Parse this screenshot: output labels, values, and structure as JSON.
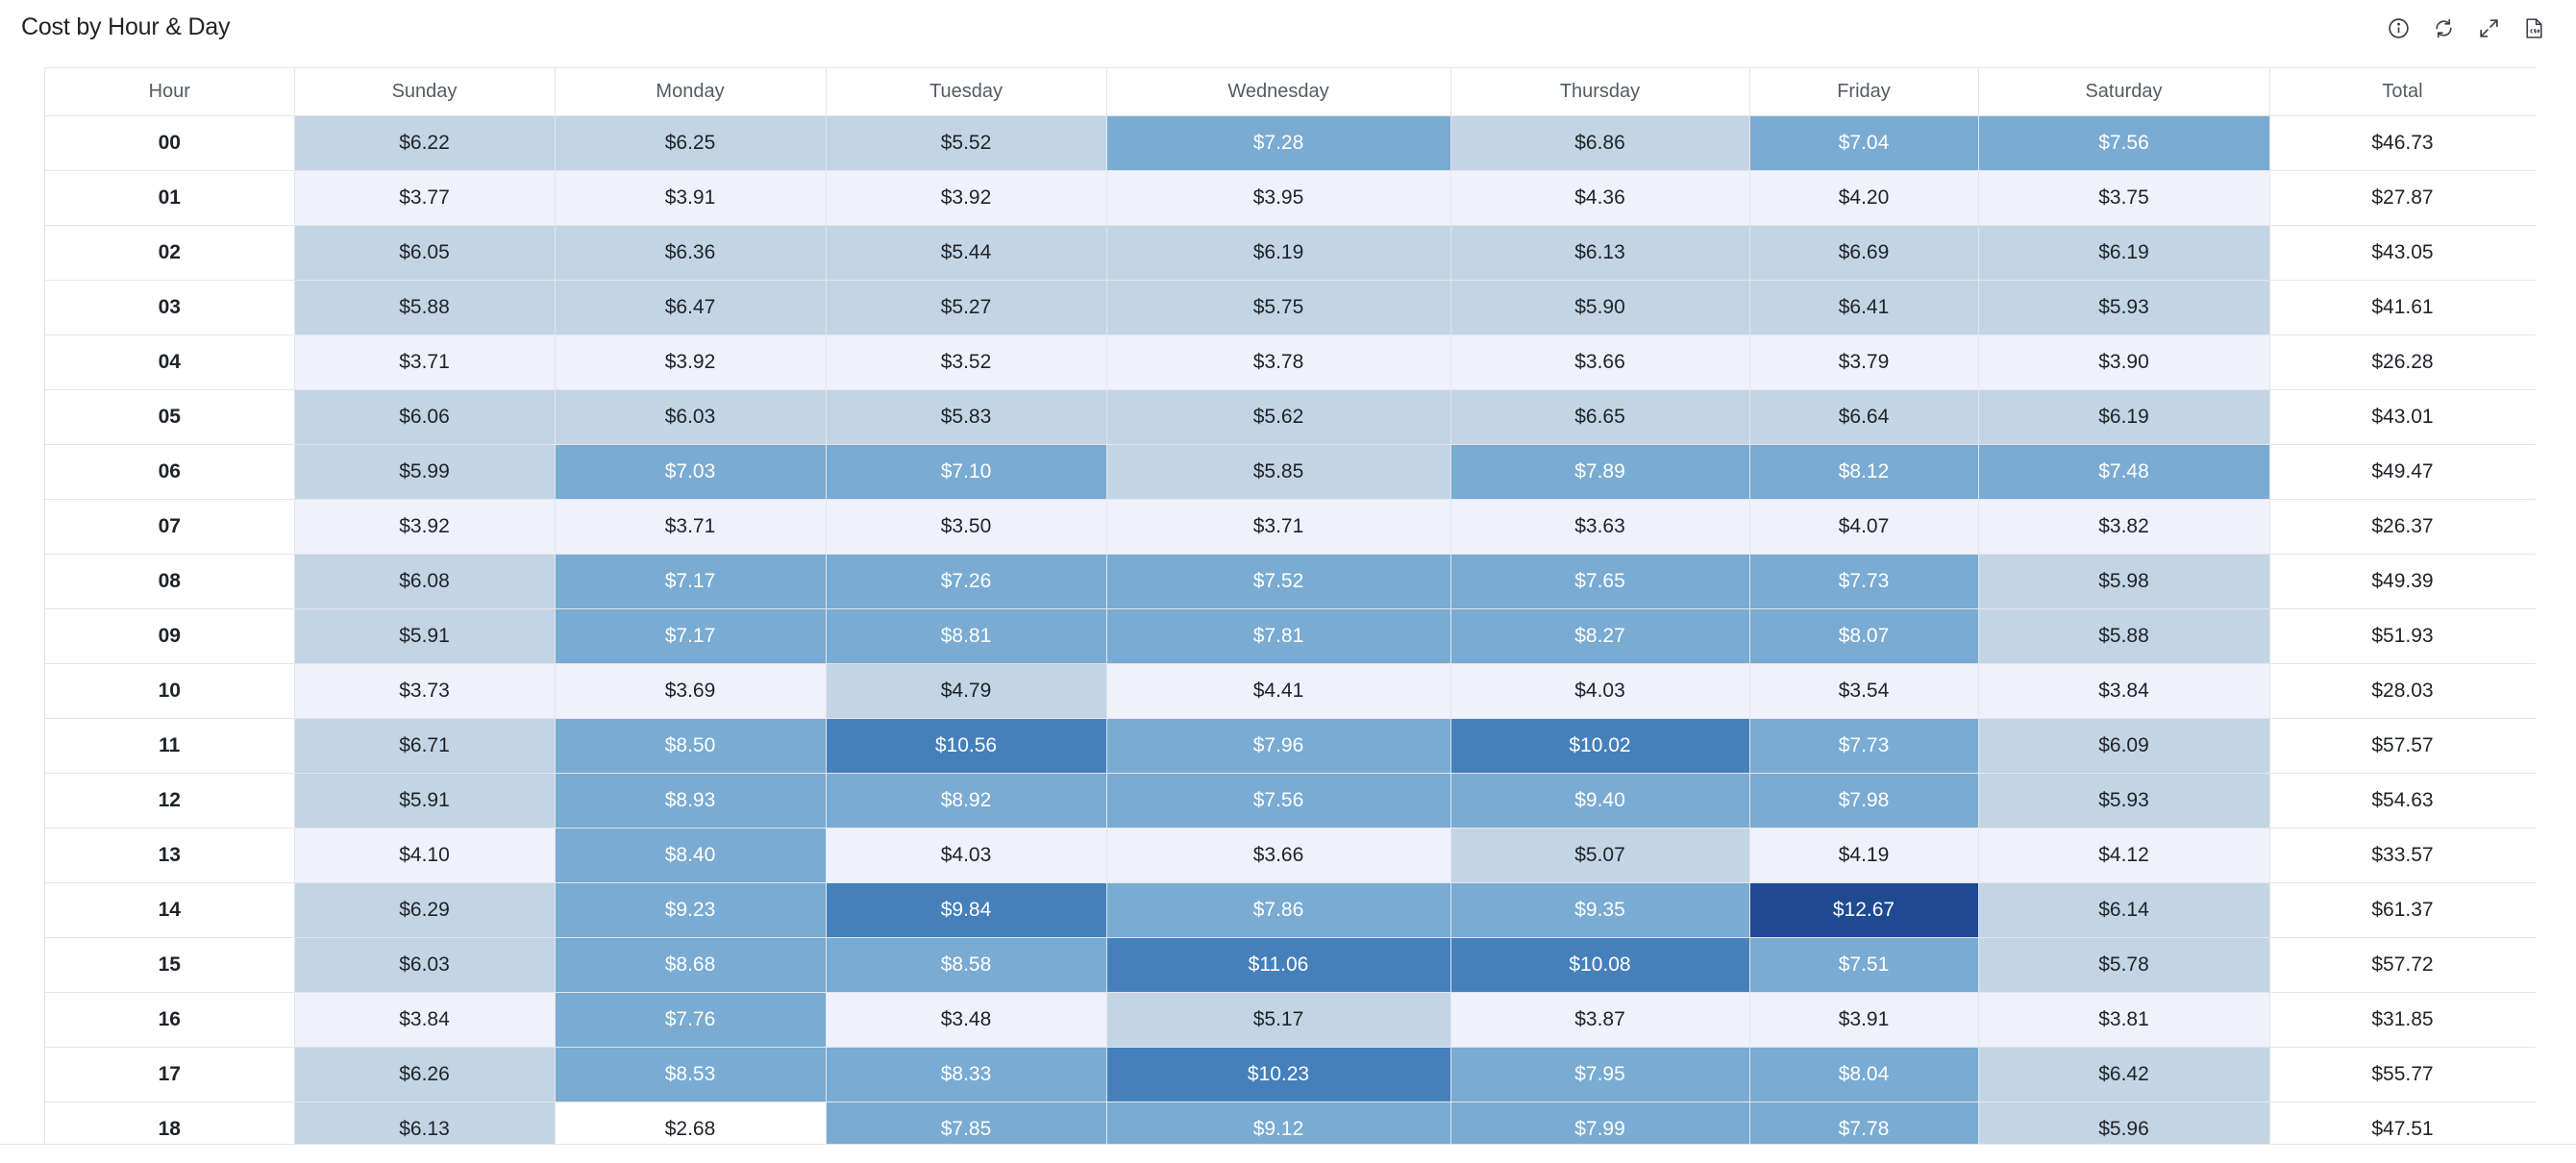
{
  "header": {
    "title": "Cost by Hour & Day",
    "icons": [
      "info-icon",
      "refresh-icon",
      "expand-icon",
      "csv-export-icon"
    ]
  },
  "colors": {
    "l0": "#eff2fc",
    "l1": "#c3d5e5",
    "l2": "#7aabd2",
    "l3": "#4580bb",
    "l4": "#1f4a91"
  },
  "table": {
    "columns": [
      "Hour",
      "Sunday",
      "Monday",
      "Tuesday",
      "Wednesday",
      "Thursday",
      "Friday",
      "Saturday",
      "Total"
    ],
    "rows": [
      {
        "hour": "00",
        "values": [
          "$6.22",
          "$6.25",
          "$5.52",
          "$7.28",
          "$6.86",
          "$7.04",
          "$7.56"
        ],
        "levels": [
          1,
          1,
          1,
          2,
          1,
          2,
          2
        ],
        "total": "$46.73"
      },
      {
        "hour": "01",
        "values": [
          "$3.77",
          "$3.91",
          "$3.92",
          "$3.95",
          "$4.36",
          "$4.20",
          "$3.75"
        ],
        "levels": [
          0,
          0,
          0,
          0,
          0,
          0,
          0
        ],
        "total": "$27.87"
      },
      {
        "hour": "02",
        "values": [
          "$6.05",
          "$6.36",
          "$5.44",
          "$6.19",
          "$6.13",
          "$6.69",
          "$6.19"
        ],
        "levels": [
          1,
          1,
          1,
          1,
          1,
          1,
          1
        ],
        "total": "$43.05"
      },
      {
        "hour": "03",
        "values": [
          "$5.88",
          "$6.47",
          "$5.27",
          "$5.75",
          "$5.90",
          "$6.41",
          "$5.93"
        ],
        "levels": [
          1,
          1,
          1,
          1,
          1,
          1,
          1
        ],
        "total": "$41.61"
      },
      {
        "hour": "04",
        "values": [
          "$3.71",
          "$3.92",
          "$3.52",
          "$3.78",
          "$3.66",
          "$3.79",
          "$3.90"
        ],
        "levels": [
          0,
          0,
          0,
          0,
          0,
          0,
          0
        ],
        "total": "$26.28"
      },
      {
        "hour": "05",
        "values": [
          "$6.06",
          "$6.03",
          "$5.83",
          "$5.62",
          "$6.65",
          "$6.64",
          "$6.19"
        ],
        "levels": [
          1,
          1,
          1,
          1,
          1,
          1,
          1
        ],
        "total": "$43.01"
      },
      {
        "hour": "06",
        "values": [
          "$5.99",
          "$7.03",
          "$7.10",
          "$5.85",
          "$7.89",
          "$8.12",
          "$7.48"
        ],
        "levels": [
          1,
          2,
          2,
          1,
          2,
          2,
          2
        ],
        "total": "$49.47"
      },
      {
        "hour": "07",
        "values": [
          "$3.92",
          "$3.71",
          "$3.50",
          "$3.71",
          "$3.63",
          "$4.07",
          "$3.82"
        ],
        "levels": [
          0,
          0,
          0,
          0,
          0,
          0,
          0
        ],
        "total": "$26.37"
      },
      {
        "hour": "08",
        "values": [
          "$6.08",
          "$7.17",
          "$7.26",
          "$7.52",
          "$7.65",
          "$7.73",
          "$5.98"
        ],
        "levels": [
          1,
          2,
          2,
          2,
          2,
          2,
          1
        ],
        "total": "$49.39"
      },
      {
        "hour": "09",
        "values": [
          "$5.91",
          "$7.17",
          "$8.81",
          "$7.81",
          "$8.27",
          "$8.07",
          "$5.88"
        ],
        "levels": [
          1,
          2,
          2,
          2,
          2,
          2,
          1
        ],
        "total": "$51.93"
      },
      {
        "hour": "10",
        "values": [
          "$3.73",
          "$3.69",
          "$4.79",
          "$4.41",
          "$4.03",
          "$3.54",
          "$3.84"
        ],
        "levels": [
          0,
          0,
          1,
          0,
          0,
          0,
          0
        ],
        "total": "$28.03"
      },
      {
        "hour": "11",
        "values": [
          "$6.71",
          "$8.50",
          "$10.56",
          "$7.96",
          "$10.02",
          "$7.73",
          "$6.09"
        ],
        "levels": [
          1,
          2,
          3,
          2,
          3,
          2,
          1
        ],
        "total": "$57.57"
      },
      {
        "hour": "12",
        "values": [
          "$5.91",
          "$8.93",
          "$8.92",
          "$7.56",
          "$9.40",
          "$7.98",
          "$5.93"
        ],
        "levels": [
          1,
          2,
          2,
          2,
          2,
          2,
          1
        ],
        "total": "$54.63"
      },
      {
        "hour": "13",
        "values": [
          "$4.10",
          "$8.40",
          "$4.03",
          "$3.66",
          "$5.07",
          "$4.19",
          "$4.12"
        ],
        "levels": [
          0,
          2,
          0,
          0,
          1,
          0,
          0
        ],
        "total": "$33.57"
      },
      {
        "hour": "14",
        "values": [
          "$6.29",
          "$9.23",
          "$9.84",
          "$7.86",
          "$9.35",
          "$12.67",
          "$6.14"
        ],
        "levels": [
          1,
          2,
          3,
          2,
          2,
          4,
          1
        ],
        "total": "$61.37"
      },
      {
        "hour": "15",
        "values": [
          "$6.03",
          "$8.68",
          "$8.58",
          "$11.06",
          "$10.08",
          "$7.51",
          "$5.78"
        ],
        "levels": [
          1,
          2,
          2,
          3,
          3,
          2,
          1
        ],
        "total": "$57.72"
      },
      {
        "hour": "16",
        "values": [
          "$3.84",
          "$7.76",
          "$3.48",
          "$5.17",
          "$3.87",
          "$3.91",
          "$3.81"
        ],
        "levels": [
          0,
          2,
          0,
          1,
          0,
          0,
          0
        ],
        "total": "$31.85"
      },
      {
        "hour": "17",
        "values": [
          "$6.26",
          "$8.53",
          "$8.33",
          "$10.23",
          "$7.95",
          "$8.04",
          "$6.42"
        ],
        "levels": [
          1,
          2,
          2,
          3,
          2,
          2,
          1
        ],
        "total": "$55.77"
      },
      {
        "hour": "18",
        "values": [
          "$6.13",
          "$2.68",
          "$7.85",
          "$9.12",
          "$7.99",
          "$7.78",
          "$5.96"
        ],
        "levels": [
          1,
          -1,
          2,
          2,
          2,
          2,
          1
        ],
        "total": "$47.51"
      }
    ]
  }
}
